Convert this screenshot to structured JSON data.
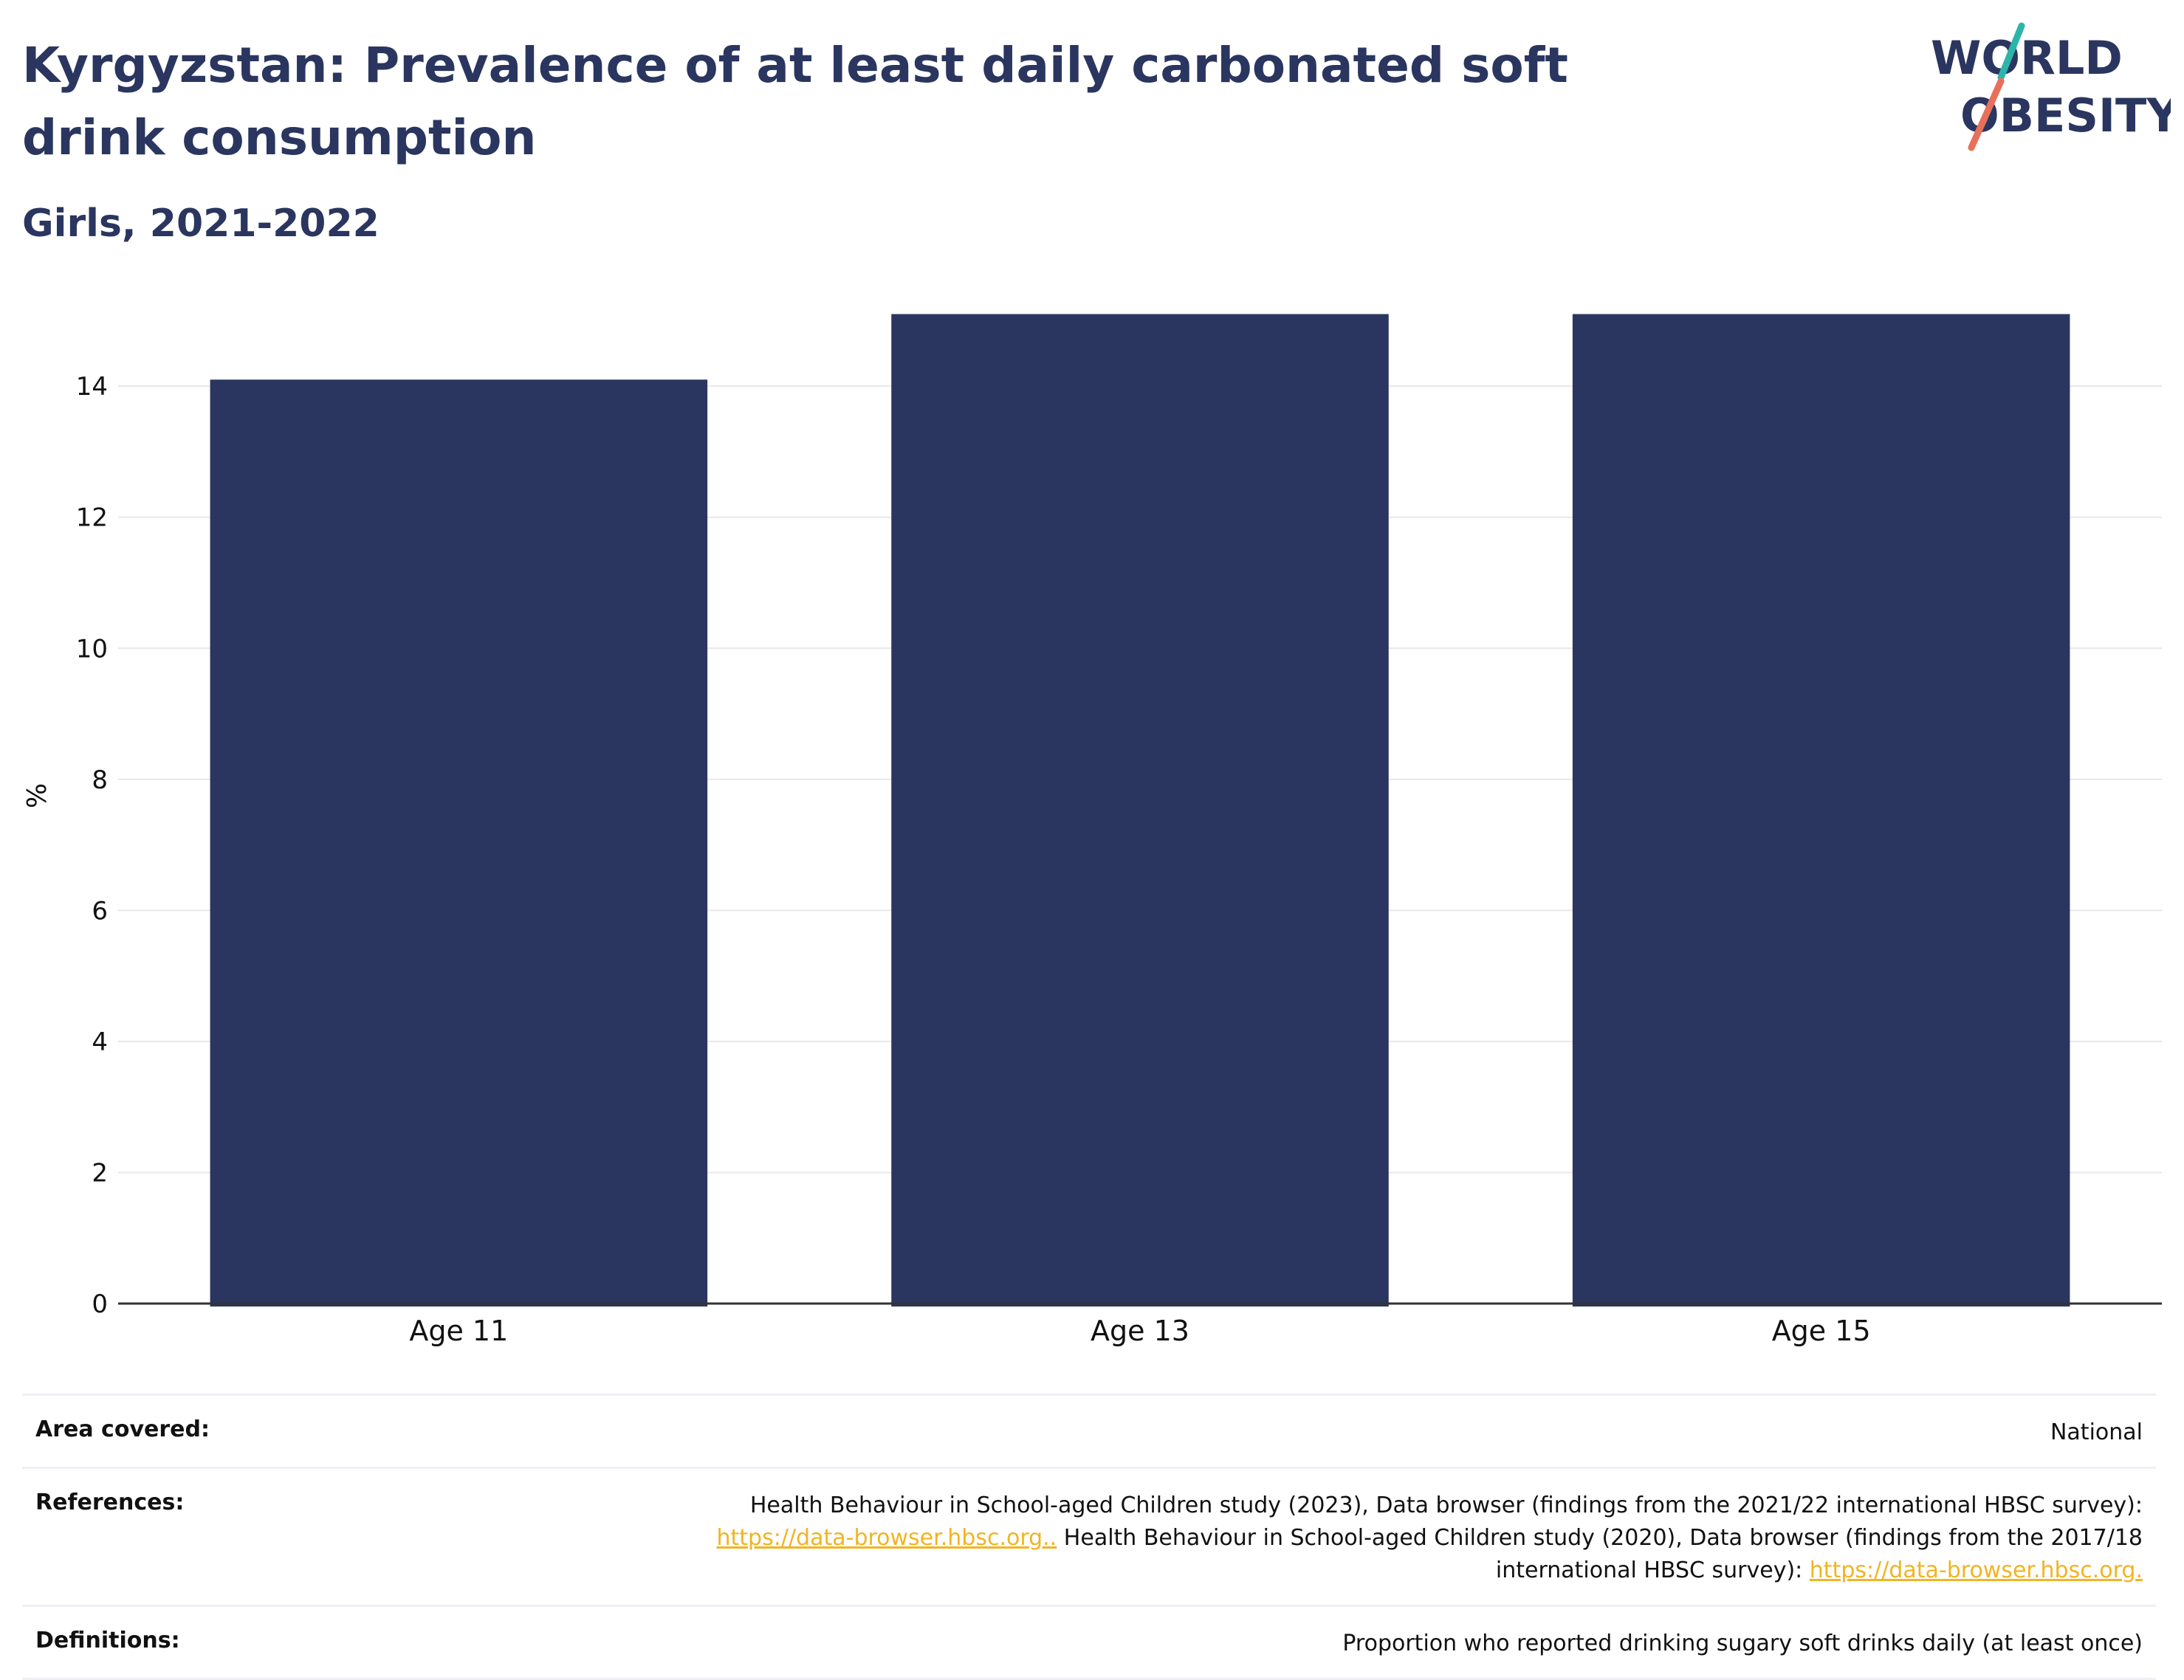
{
  "header": {
    "title": "Kyrgyzstan: Prevalence of at least daily carbonated soft drink consumption",
    "subtitle": "Girls, 2021-2022"
  },
  "logo": {
    "line1": "WORLD",
    "line2": "OBESITY"
  },
  "colors": {
    "bar": "#2a365f",
    "title": "#2a365f",
    "link": "#f1b423",
    "logo_teal": "#2bb5a9",
    "logo_coral": "#e8705a"
  },
  "chart_data": {
    "type": "bar",
    "categories": [
      "Age 11",
      "Age 13",
      "Age 15"
    ],
    "values": [
      14.1,
      15.1,
      15.1
    ],
    "ylabel": "%",
    "ylim": [
      0,
      15.5
    ],
    "yticks": [
      0,
      2,
      4,
      6,
      8,
      10,
      12,
      14
    ],
    "grid": true
  },
  "info": {
    "area_label": "Area covered:",
    "area_value": "National",
    "references_label": "References:",
    "references_text1": "Health Behaviour in School-aged Children study (2023), Data browser (findings from the 2021/22 international HBSC survey):",
    "references_link1": "https://data-browser.hbsc.org..",
    "references_text2": " Health Behaviour in School-aged Children study (2020), Data browser (findings from the 2017/18 international HBSC survey): ",
    "references_link2": "https://data-browser.hbsc.org.",
    "definitions_label": "Definitions:",
    "definitions_value": "Proportion who reported drinking sugary soft drinks daily (at least once)"
  }
}
